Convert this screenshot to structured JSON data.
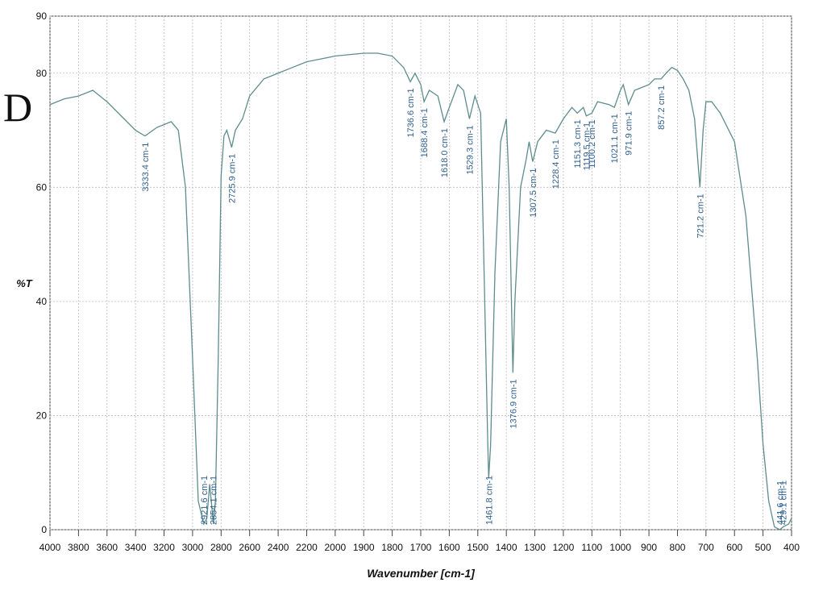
{
  "chart_data": {
    "type": "line",
    "panel_label": "D",
    "xlabel": "Wavenumber [cm-1]",
    "ylabel": "%T",
    "x": [
      4000,
      3900,
      3800,
      3700,
      3600,
      3500,
      3400,
      3333.4,
      3250,
      3200,
      3150,
      3100,
      3050,
      3000,
      2960,
      2921.6,
      2900,
      2880,
      2854.1,
      2840,
      2820,
      2800,
      2780,
      2760,
      2725.9,
      2700,
      2650,
      2600,
      2500,
      2400,
      2300,
      2200,
      2100,
      2000,
      1900,
      1850,
      1800,
      1760,
      1736.6,
      1720,
      1700,
      1688.4,
      1670,
      1640,
      1618.0,
      1600,
      1570,
      1550,
      1529.3,
      1510,
      1490,
      1480,
      1465,
      1461.8,
      1455,
      1440,
      1420,
      1400,
      1390,
      1380,
      1376.9,
      1370,
      1350,
      1330,
      1320,
      1307.5,
      1290,
      1260,
      1228.4,
      1200,
      1170,
      1151.3,
      1130,
      1119.5,
      1100.2,
      1080,
      1040,
      1021.1,
      1000,
      990,
      971.9,
      950,
      900,
      880,
      857.2,
      840,
      820,
      800,
      780,
      760,
      740,
      721.2,
      710,
      700,
      680,
      650,
      600,
      560,
      520,
      500,
      480,
      460,
      441.6,
      429.1,
      410,
      400
    ],
    "series": [
      {
        "name": "spectrum",
        "color": "#5e8c8c",
        "values": [
          74.5,
          75.5,
          76,
          77,
          75,
          72.5,
          70,
          69,
          70.5,
          71,
          71.5,
          70,
          60,
          30,
          5,
          1,
          2,
          8,
          1,
          5,
          30,
          62,
          69,
          70,
          67,
          70,
          72,
          76,
          79,
          80,
          81,
          82,
          82.5,
          83,
          83.5,
          83.5,
          83,
          81,
          78.5,
          80,
          78,
          75,
          77,
          76,
          71.5,
          74,
          78,
          77,
          72,
          76,
          73,
          50,
          15,
          9,
          15,
          45,
          68,
          72,
          60,
          35,
          27.5,
          40,
          60,
          65,
          68,
          64.5,
          68,
          70,
          69.5,
          72,
          74,
          73,
          74,
          72.5,
          73,
          75,
          74.5,
          74,
          77,
          78,
          74.5,
          77,
          78,
          79,
          79,
          80,
          81,
          80.5,
          79,
          77,
          72,
          60,
          70,
          75,
          75,
          73,
          68,
          55,
          30,
          15,
          5,
          0.5,
          0,
          0.5,
          1,
          2
        ]
      }
    ],
    "annotations": [
      {
        "text": "3333.4 cm-1",
        "x": 3333.4,
        "y": 69
      },
      {
        "text": "2921.6 cm-1",
        "x": 2921.6,
        "y": 1
      },
      {
        "text": "2854.1 cm-1",
        "x": 2854.1,
        "y": 1
      },
      {
        "text": "2725.9 cm-1",
        "x": 2725.9,
        "y": 67
      },
      {
        "text": "1736.6 cm-1",
        "x": 1736.6,
        "y": 78.5
      },
      {
        "text": "1688.4 cm-1",
        "x": 1688.4,
        "y": 75
      },
      {
        "text": "1618.0 cm-1",
        "x": 1618.0,
        "y": 71.5
      },
      {
        "text": "1529.3 cm-1",
        "x": 1529.3,
        "y": 72
      },
      {
        "text": "1461.8 cm-1",
        "x": 1461.8,
        "y": 9
      },
      {
        "text": "1376.9 cm-1",
        "x": 1376.9,
        "y": 27.5
      },
      {
        "text": "1307.5 cm-1",
        "x": 1307.5,
        "y": 64.5
      },
      {
        "text": "1228.4 cm-1",
        "x": 1228.4,
        "y": 69.5
      },
      {
        "text": "1151.3 cm-1",
        "x": 1151.3,
        "y": 73
      },
      {
        "text": "1119.5 cm-1",
        "x": 1119.5,
        "y": 72.5
      },
      {
        "text": "1100.2 cm-1",
        "x": 1100.2,
        "y": 73
      },
      {
        "text": "1021.1 cm-1",
        "x": 1021.1,
        "y": 74
      },
      {
        "text": "971.9 cm-1",
        "x": 971.9,
        "y": 74.5
      },
      {
        "text": "857.2 cm-1",
        "x": 857.2,
        "y": 79
      },
      {
        "text": "721.2 cm-1",
        "x": 721.2,
        "y": 60
      },
      {
        "text": "441.6 cm-1",
        "x": 441.6,
        "y": 0
      },
      {
        "text": "429.1 cm-1",
        "x": 429.1,
        "y": 0.5
      }
    ],
    "xlim": [
      4000,
      400
    ],
    "xticks": [
      4000,
      3800,
      3600,
      3400,
      3200,
      3000,
      2800,
      2600,
      2400,
      2200,
      2000,
      1900,
      1800,
      1700,
      1600,
      1500,
      1400,
      1300,
      1200,
      1100,
      1000,
      900,
      800,
      700,
      600,
      500,
      400
    ],
    "ylim": [
      0,
      90
    ],
    "yticks": [
      0,
      20,
      40,
      60,
      80,
      90
    ],
    "grid": true
  }
}
